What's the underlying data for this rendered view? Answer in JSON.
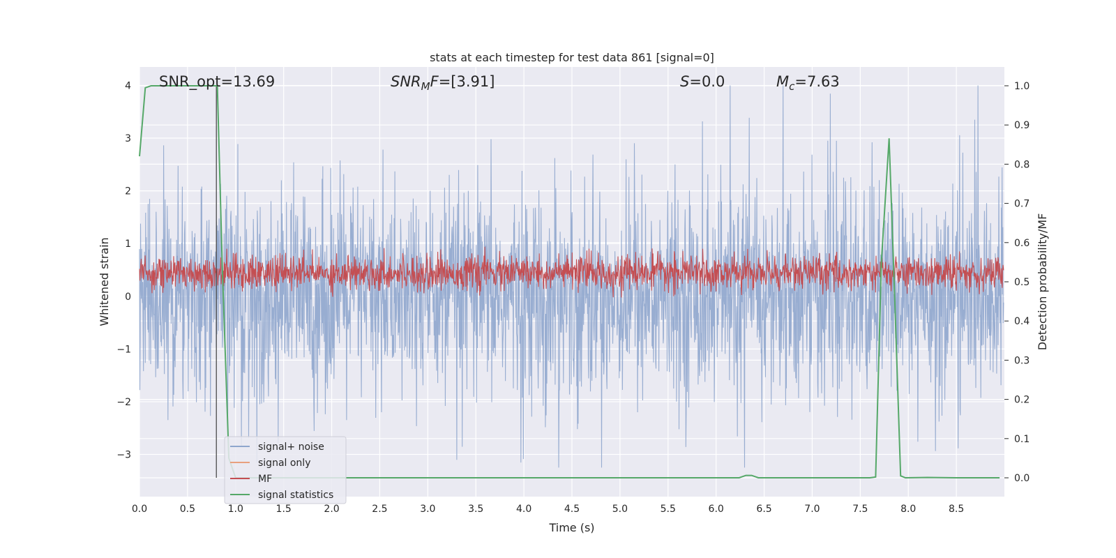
{
  "chart_data": {
    "type": "line",
    "title": "stats at each timestep for test data 861 [signal=0]",
    "xlabel": "Time (s)",
    "ylabel_left": "Whitened strain",
    "ylabel_right": "Detection probability/MF",
    "xlim": [
      0.0,
      9.0
    ],
    "ylim_left": [
      -3.8,
      4.35
    ],
    "ylim_right": [
      -0.048,
      1.048
    ],
    "x_ticks": [
      "0.0",
      "0.5",
      "1.0",
      "1.5",
      "2.0",
      "2.5",
      "3.0",
      "3.5",
      "4.0",
      "4.5",
      "5.0",
      "5.5",
      "6.0",
      "6.5",
      "7.0",
      "7.5",
      "8.0",
      "8.5"
    ],
    "x_tick_values": [
      0.0,
      0.5,
      1.0,
      1.5,
      2.0,
      2.5,
      3.0,
      3.5,
      4.0,
      4.5,
      5.0,
      5.5,
      6.0,
      6.5,
      7.0,
      7.5,
      8.0,
      8.5
    ],
    "y_left_ticks": [
      "4",
      "3",
      "2",
      "1",
      "0",
      "−1",
      "−2",
      "−3"
    ],
    "y_left_tick_values": [
      4,
      3,
      2,
      1,
      0,
      -1,
      -2,
      -3
    ],
    "y_right_ticks": [
      "1.0",
      "0.9",
      "0.8",
      "0.7",
      "0.6",
      "0.5",
      "0.4",
      "0.3",
      "0.2",
      "0.1",
      "0.0"
    ],
    "y_right_tick_values": [
      1.0,
      0.9,
      0.8,
      0.7,
      0.6,
      0.5,
      0.4,
      0.3,
      0.2,
      0.1,
      0.0
    ],
    "grid": true,
    "legend_placement": "lower-left",
    "annotations": {
      "snr_opt": "SNR_opt=13.69",
      "snr_mf_sym": "SNR",
      "snr_mf_sub": "M",
      "snr_mf_rest": "F=[3.91]",
      "s_sym": "S",
      "s_rest": "=0.0",
      "mc_sym": "M",
      "mc_sub": "c",
      "mc_rest": "=7.63"
    },
    "vertical_marker_x": 0.8,
    "series": [
      {
        "name": "signal+ noise",
        "color": "#8fa6cd",
        "axis": "left",
        "kind": "noise",
        "approx_range": [
          -3.25,
          4.0
        ]
      },
      {
        "name": "signal only",
        "color": "#e8a07e",
        "axis": "left",
        "kind": "flat",
        "values_y": 0
      },
      {
        "name": "MF",
        "color": "#c44e52",
        "axis": "right",
        "kind": "noise",
        "approx_range": [
          0.46,
          0.59
        ]
      },
      {
        "name": "signal statistics",
        "color": "#55a868",
        "axis": "right",
        "kind": "line",
        "x": [
          0.0,
          0.06,
          0.12,
          0.25,
          0.4,
          0.55,
          0.7,
          0.8,
          0.81,
          0.86,
          0.93,
          1.0,
          2.0,
          3.0,
          4.0,
          5.0,
          6.0,
          6.24,
          6.31,
          6.37,
          6.44,
          6.6,
          7.0,
          7.6,
          7.66,
          7.72,
          7.8,
          7.86,
          7.92,
          7.97,
          8.2,
          8.5,
          8.95
        ],
        "y": [
          0.82,
          0.995,
          1.0,
          1.0,
          1.0,
          1.0,
          1.0,
          1.0,
          1.0,
          0.55,
          0.05,
          0.0,
          0.0,
          0.0,
          0.0,
          0.0,
          0.0,
          0.0,
          0.006,
          0.006,
          0.0,
          0.0,
          0.0,
          0.0,
          0.002,
          0.55,
          0.866,
          0.45,
          0.005,
          0.0,
          0.001,
          0.0,
          0.0
        ]
      }
    ]
  }
}
